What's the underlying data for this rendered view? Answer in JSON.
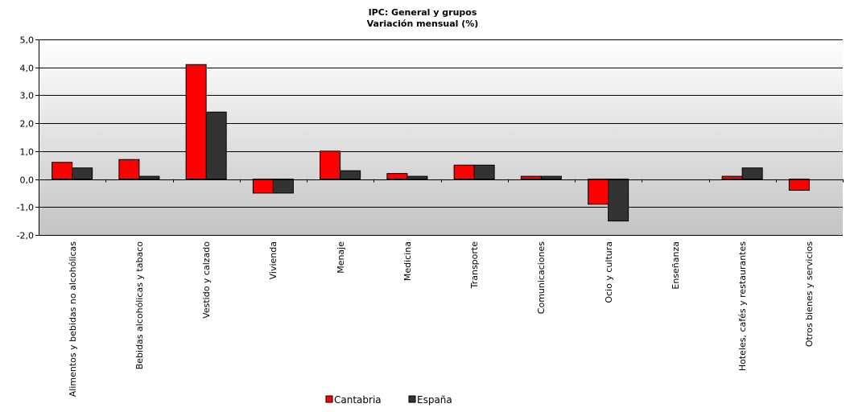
{
  "chart_data": {
    "type": "bar",
    "title": "IPC: General  y grupos",
    "subtitle": "Variación  mensual  (%)",
    "xlabel": "",
    "ylabel": "",
    "ylim": [
      -2.0,
      5.0
    ],
    "yticks": [
      "5,0",
      "4,0",
      "3,0",
      "2,0",
      "1,0",
      "0,0",
      "-1,0",
      "-2,0"
    ],
    "ytick_values": [
      5,
      4,
      3,
      2,
      1,
      0,
      -1,
      -2
    ],
    "grid": true,
    "legend_position": "bottom",
    "categories": [
      "Alimentos y bebidas no alcohólicas",
      "Bebidas alcohólicas y tabaco",
      "Vestido y calzado",
      "Vivienda",
      "Menaje",
      "Medicina",
      "Transporte",
      "Comunicaciones",
      "Ocio y cultura",
      "Enseñanza",
      "Hoteles, cafés y restaurantes",
      "Otros bienes y servicios"
    ],
    "series": [
      {
        "name": "Cantabria",
        "color": "#ff0000",
        "values": [
          0.6,
          0.7,
          4.1,
          -0.5,
          1.0,
          0.2,
          0.5,
          0.1,
          -0.9,
          0.0,
          0.1,
          -0.4
        ]
      },
      {
        "name": "España",
        "color": "#333333",
        "values": [
          0.4,
          0.1,
          2.4,
          -0.5,
          0.3,
          0.1,
          0.5,
          0.1,
          -1.5,
          0.0,
          0.4,
          0.0
        ]
      }
    ]
  }
}
